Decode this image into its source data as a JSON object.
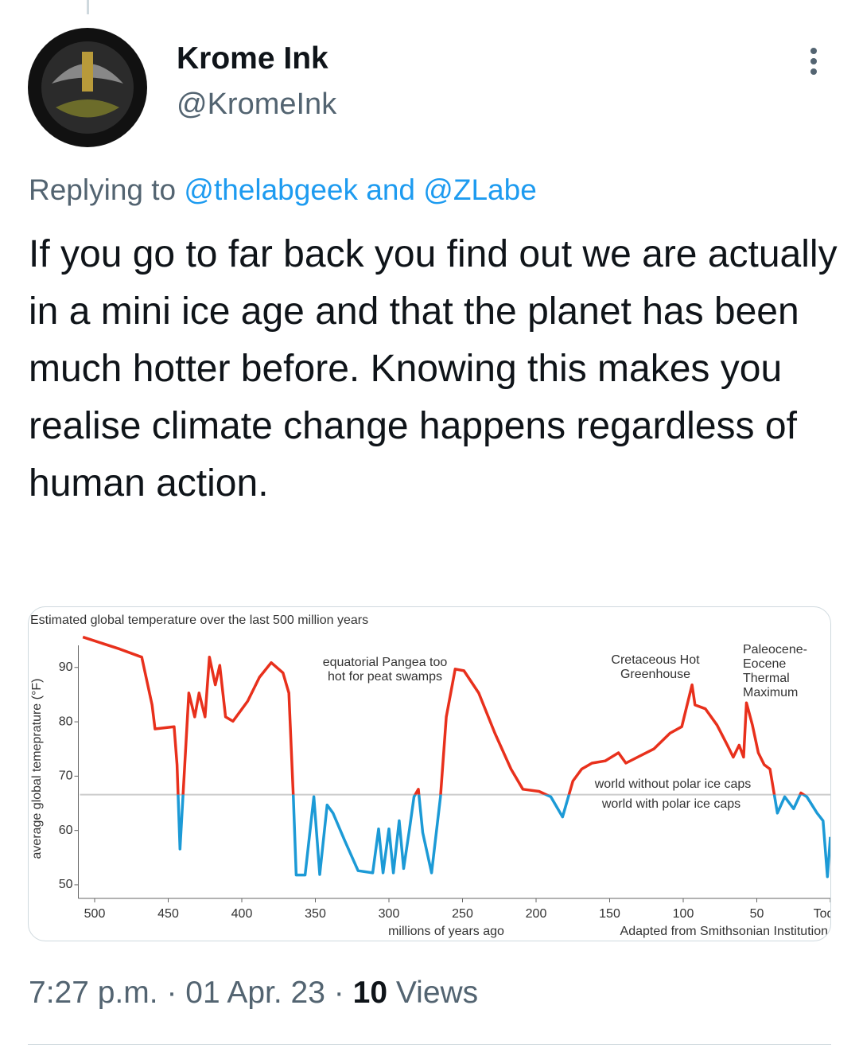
{
  "tweet": {
    "name": "Krome Ink",
    "handle": "@KromeInk",
    "replying_to": "Replying to",
    "mentions": [
      "@thelabgeek",
      "@ZLabe"
    ],
    "mention_joiner": "and",
    "body": "If you go to far back you find out we are actually in a mini ice age and that the planet has been much hotter before. Knowing this makes you realise climate change happens regardless of human action.",
    "time": "7:27 p.m.",
    "separator": "·",
    "date": "01 Apr. 23",
    "views_count": "10",
    "views_label": "Views"
  },
  "chart_data": {
    "type": "line",
    "title": "Estimated global temperature over the last 500 million years",
    "x_label": "millions of years ago",
    "y_label": "average global temeprature (°F)",
    "source": "Adapted from Smithsonian Institution",
    "x": [
      508,
      483,
      468,
      461,
      459,
      446,
      444,
      442,
      440,
      436,
      432,
      429,
      425,
      422,
      418,
      415,
      411,
      406,
      396,
      388,
      380,
      372,
      368,
      365,
      363,
      357,
      351,
      347,
      342,
      338,
      330,
      321,
      311,
      307,
      304,
      300,
      297,
      293,
      290,
      286,
      283,
      280,
      277,
      271,
      265,
      261,
      255,
      249,
      239,
      228,
      217,
      209,
      198,
      190,
      182,
      175,
      169,
      162,
      153,
      144,
      139,
      131,
      120,
      109,
      101,
      98,
      94,
      92,
      85,
      77,
      70,
      66,
      62,
      59,
      57,
      53,
      49,
      45,
      41,
      36,
      31,
      25,
      20,
      16,
      9,
      5,
      2,
      0
    ],
    "values": [
      95.6,
      93.4,
      91.9,
      83.1,
      78.7,
      79.1,
      72.1,
      56.6,
      66.2,
      85.3,
      80.9,
      85.3,
      80.9,
      91.9,
      86.8,
      90.4,
      80.9,
      80.1,
      83.8,
      88.2,
      90.9,
      89,
      85.3,
      66.2,
      51.8,
      51.8,
      66.2,
      51.9,
      64.7,
      63.2,
      58.1,
      52.6,
      52.2,
      60.3,
      52.2,
      60.3,
      52.2,
      61.8,
      53,
      60.3,
      66.2,
      67.6,
      59.6,
      52.2,
      66.2,
      80.9,
      89.7,
      89.4,
      85.3,
      77.9,
      71.3,
      67.6,
      67.2,
      66.2,
      62.5,
      69.1,
      71.3,
      72.4,
      72.8,
      74.3,
      72.4,
      73.5,
      75,
      77.9,
      79.1,
      82.4,
      86.8,
      83.1,
      82.4,
      79.4,
      75.7,
      73.5,
      75.7,
      73.5,
      83.5,
      79.4,
      74.3,
      72.1,
      71.3,
      63.2,
      66.2,
      64,
      66.9,
      66.2,
      63.2,
      61.8,
      51.5,
      58.8
    ],
    "threshold": 66.6,
    "above_color": "#e8301c",
    "below_color": "#1c9ad6",
    "xlim": [
      510,
      0
    ],
    "xticks": [
      500,
      450,
      400,
      350,
      300,
      250,
      200,
      150,
      100,
      50,
      {
        "value": 0,
        "label": "Today"
      }
    ],
    "ylim": [
      47.5,
      97
    ],
    "yticks": [
      50,
      60,
      70,
      80,
      90
    ],
    "annotations": [
      [
        "equatorial Pangea too",
        "hot for peat swamps"
      ],
      [
        "Cretaceous Hot",
        "Greenhouse"
      ],
      [
        "Paleocene-",
        "Eocene",
        "Thermal",
        "Maximum"
      ]
    ],
    "zone_labels": [
      "world without polar ice caps",
      "world with polar ice caps"
    ]
  }
}
